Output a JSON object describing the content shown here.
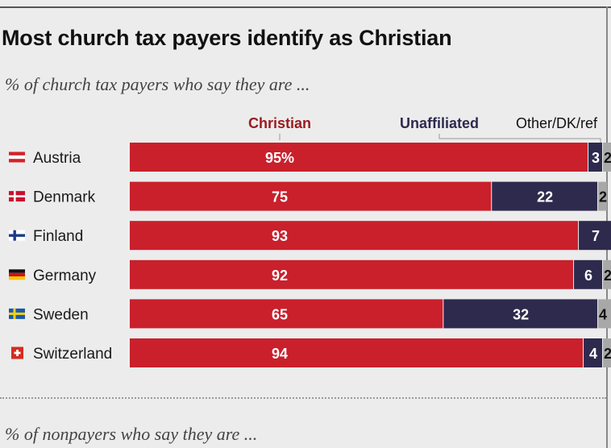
{
  "header": {
    "title": "Most church tax payers identify as Christian",
    "subtitle": "% of church tax payers who say they are ...",
    "subtitle2": "% of nonpayers who say they are ..."
  },
  "colors": {
    "christian": "#c9202c",
    "unaffiliated": "#2e2a4e",
    "other": "#a8a8a8",
    "background": "#ececec"
  },
  "chart_data": {
    "type": "bar",
    "orientation": "horizontal",
    "stacked": true,
    "title": "Most church tax payers identify as Christian",
    "subtitle": "% of church tax payers who say they are ...",
    "categories": [
      "Austria",
      "Denmark",
      "Finland",
      "Germany",
      "Sweden",
      "Switzerland"
    ],
    "category_icons": [
      "austria-flag-icon",
      "denmark-flag-icon",
      "finland-flag-icon",
      "germany-flag-icon",
      "sweden-flag-icon",
      "switzerland-flag-icon"
    ],
    "series": [
      {
        "name": "Christian",
        "values": [
          95,
          75,
          93,
          92,
          65,
          94
        ],
        "labels": [
          "95%",
          "75",
          "93",
          "92",
          "65",
          "94"
        ],
        "color": "#c9202c"
      },
      {
        "name": "Unaffiliated",
        "values": [
          3,
          22,
          7,
          6,
          32,
          4
        ],
        "labels": [
          "3",
          "22",
          "7",
          "6",
          "32",
          "4"
        ],
        "color": "#2e2a4e"
      },
      {
        "name": "Other/DK/ref",
        "values": [
          2,
          2,
          0,
          2,
          4,
          2
        ],
        "labels": [
          "2",
          "2",
          "",
          "2",
          "4",
          "2"
        ],
        "color": "#a8a8a8"
      }
    ],
    "xlim": [
      0,
      100
    ],
    "legend_placement": "top",
    "grid": false
  }
}
